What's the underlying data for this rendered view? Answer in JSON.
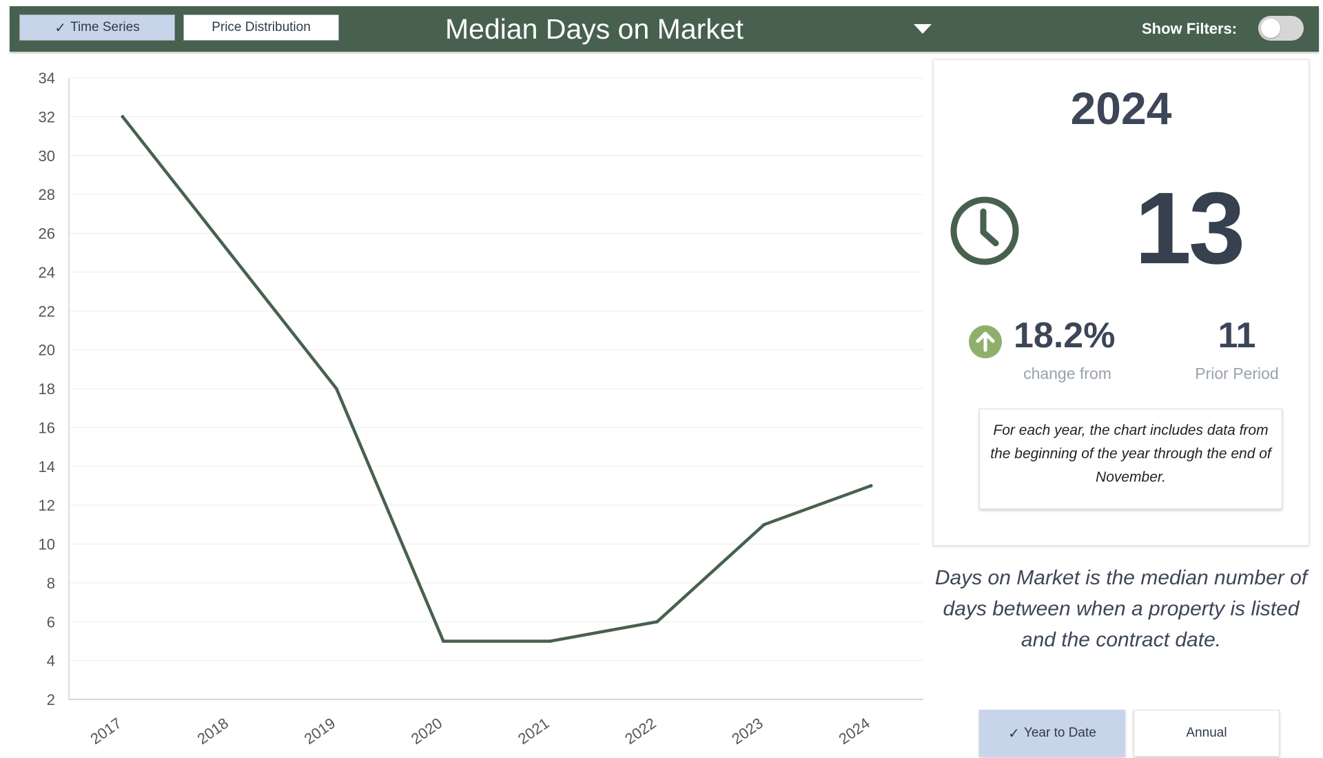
{
  "header": {
    "tabs": [
      {
        "label": "Time Series",
        "active": true
      },
      {
        "label": "Price Distribution",
        "active": false
      }
    ],
    "title": "Median Days on Market",
    "filters_label": "Show Filters:",
    "filters_on": false
  },
  "summary": {
    "year": "2024",
    "value": "13",
    "change_pct": "18.2%",
    "change_label": "change from",
    "prior_value": "11",
    "prior_label": "Prior Period",
    "note": "For each year, the chart includes data from the beginning of the year through the end of November."
  },
  "definition": "Days on Market is the median number of days between when a property is listed and the contract date.",
  "period_buttons": [
    {
      "label": "Year to Date",
      "active": true
    },
    {
      "label": "Annual",
      "active": false
    }
  ],
  "colors": {
    "header_bg": "#48614f",
    "line": "#48614f",
    "active_button": "#c8d4ea",
    "up_arrow": "#8fb06c"
  },
  "icons": {
    "clock": "clock-icon",
    "up": "arrow-up-icon",
    "check": "check-icon",
    "dropdown": "caret-down-icon"
  },
  "chart_data": {
    "type": "line",
    "categories": [
      "2017",
      "2018",
      "2019",
      "2020",
      "2021",
      "2022",
      "2023",
      "2024"
    ],
    "series": [
      {
        "values": [
          32,
          25,
          18,
          5,
          5,
          6,
          11,
          13
        ]
      }
    ],
    "ylim": [
      2,
      34
    ],
    "yticks": [
      2,
      4,
      6,
      8,
      10,
      12,
      14,
      16,
      18,
      20,
      22,
      24,
      26,
      28,
      30,
      32,
      34
    ],
    "grid": true
  }
}
